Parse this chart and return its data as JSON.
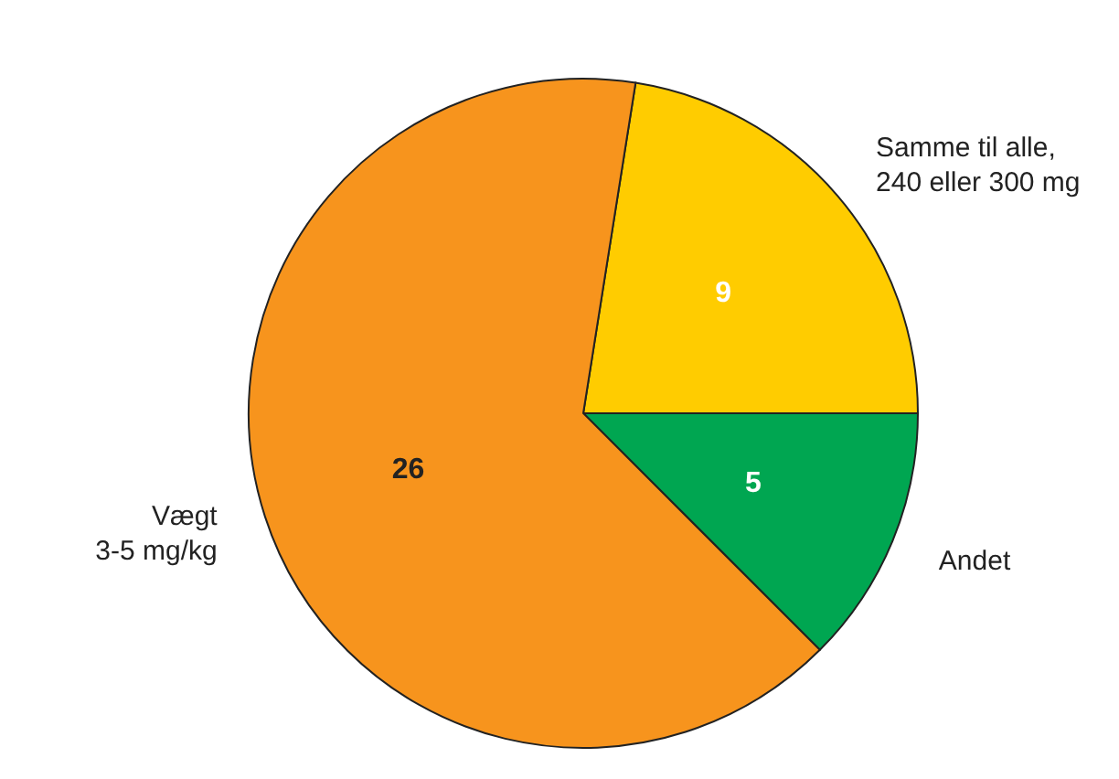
{
  "chart_data": {
    "type": "pie",
    "categories": [
      "Samme til alle,\n240 eller 300 mg",
      "Andet",
      "Vægt\n3-5 mg/kg"
    ],
    "values": [
      9,
      5,
      26
    ],
    "colors": [
      "#ffcc00",
      "#00a651",
      "#f7941d"
    ],
    "data_labels": true
  }
}
